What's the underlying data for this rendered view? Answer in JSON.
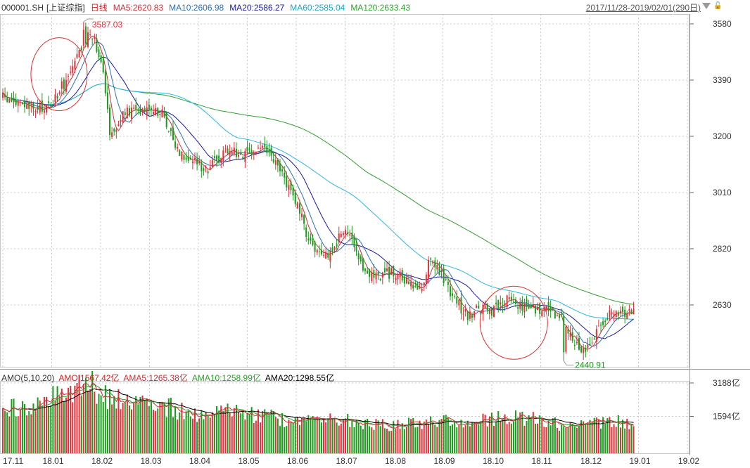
{
  "header": {
    "symbol": "000001.SH",
    "name": "[上证综指]",
    "period": "日线",
    "ma5": "MA5:2620.83",
    "ma10": "MA10:2606.98",
    "ma20": "MA20:2586.27",
    "ma60": "MA60:2585.04",
    "ma120": "MA120:2633.43",
    "range": "2017/11/28-2019/02/01(290日)"
  },
  "sub_header": {
    "title": "AMO(5,10,20)",
    "amo": "AMO:1567.42亿",
    "ama5": "AMA5:1265.38亿",
    "ama10": "AMA10:1258.99亿",
    "ama20": "AMA20:1298.55亿"
  },
  "colors": {
    "up": "#e0303a",
    "down": "#1a9c1a",
    "ma5": "#c8323c",
    "ma10": "#2f6fb5",
    "ma20": "#1a1aa0",
    "ma60": "#2bb7e6",
    "ma120": "#2ea02e",
    "amo_line": "#000000",
    "grid": "#c8c8c8",
    "circle": "#e03030"
  },
  "icons": [
    "dropdown-triangle-icon",
    "lock-icon"
  ],
  "chart_data": [
    {
      "type": "candlestick",
      "title": "000001.SH 日线",
      "y_ticks": [
        "3580",
        "3390",
        "3200",
        "3010",
        "2820",
        "2630"
      ],
      "ylim": [
        2400,
        3610
      ],
      "grid": true,
      "x_ticks": [
        "17.11",
        "18.01",
        "18.02",
        "18.03",
        "18.04",
        "18.05",
        "18.06",
        "18.07",
        "18.08",
        "18.09",
        "18.10",
        "18.11",
        "18.12",
        "19.01",
        "19.02"
      ],
      "annotations": [
        {
          "text": "3587.03",
          "month_index": 1.8
        },
        {
          "text": "2440.91",
          "month_index": 13.0
        }
      ],
      "highlight_circles": [
        {
          "month_center": 1.15,
          "value_center": 3410
        },
        {
          "month_center": 10.45,
          "value_center": 2570
        }
      ],
      "close_anchors": [
        [
          0,
          3330
        ],
        [
          0.7,
          3285
        ],
        [
          1.0,
          3310
        ],
        [
          1.4,
          3420
        ],
        [
          1.8,
          3560
        ],
        [
          2.05,
          3440
        ],
        [
          2.2,
          3200
        ],
        [
          2.45,
          3270
        ],
        [
          2.7,
          3290
        ],
        [
          3.0,
          3300
        ],
        [
          3.3,
          3270
        ],
        [
          3.55,
          3160
        ],
        [
          3.85,
          3120
        ],
        [
          4.2,
          3090
        ],
        [
          4.6,
          3160
        ],
        [
          5.0,
          3130
        ],
        [
          5.3,
          3170
        ],
        [
          5.6,
          3100
        ],
        [
          5.9,
          3020
        ],
        [
          6.2,
          2880
        ],
        [
          6.5,
          2780
        ],
        [
          6.8,
          2830
        ],
        [
          7.0,
          2900
        ],
        [
          7.3,
          2760
        ],
        [
          7.6,
          2730
        ],
        [
          8.0,
          2740
        ],
        [
          8.3,
          2700
        ],
        [
          8.55,
          2680
        ],
        [
          8.75,
          2800
        ],
        [
          9.0,
          2720
        ],
        [
          9.25,
          2650
        ],
        [
          9.5,
          2590
        ],
        [
          9.75,
          2620
        ],
        [
          10.0,
          2600
        ],
        [
          10.3,
          2650
        ],
        [
          10.6,
          2630
        ],
        [
          10.85,
          2620
        ],
        [
          11.2,
          2610
        ],
        [
          11.5,
          2570
        ],
        [
          11.8,
          2480
        ],
        [
          12.05,
          2500
        ],
        [
          12.3,
          2590
        ],
        [
          12.6,
          2600
        ],
        [
          12.9,
          2610
        ]
      ],
      "ma_end_values": {
        "ma5": 2620.83,
        "ma10": 2606.98,
        "ma20": 2586.27,
        "ma60": 2585.04,
        "ma120": 2633.43
      }
    },
    {
      "type": "bar",
      "title": "AMO(5,10,20)",
      "y_ticks": [
        "3188亿",
        "1594亿"
      ],
      "ylim": [
        0,
        3800
      ],
      "unit": "亿",
      "amount_anchors": [
        [
          0,
          1900
        ],
        [
          0.7,
          2150
        ],
        [
          1.0,
          2500
        ],
        [
          1.4,
          2900
        ],
        [
          1.8,
          3100
        ],
        [
          2.1,
          2600
        ],
        [
          2.5,
          2200
        ],
        [
          3.0,
          2300
        ],
        [
          3.3,
          2100
        ],
        [
          3.7,
          1800
        ],
        [
          4.2,
          1750
        ],
        [
          4.6,
          1800
        ],
        [
          5.0,
          1700
        ],
        [
          5.6,
          1500
        ],
        [
          6.0,
          1300
        ],
        [
          6.5,
          1450
        ],
        [
          7.0,
          1400
        ],
        [
          7.6,
          1250
        ],
        [
          8.0,
          1150
        ],
        [
          8.5,
          1300
        ],
        [
          9.0,
          1400
        ],
        [
          9.5,
          1300
        ],
        [
          10.0,
          1500
        ],
        [
          10.5,
          1550
        ],
        [
          11.0,
          1400
        ],
        [
          11.5,
          1150
        ],
        [
          12.0,
          1250
        ],
        [
          12.5,
          1350
        ],
        [
          12.9,
          1300
        ]
      ]
    }
  ]
}
